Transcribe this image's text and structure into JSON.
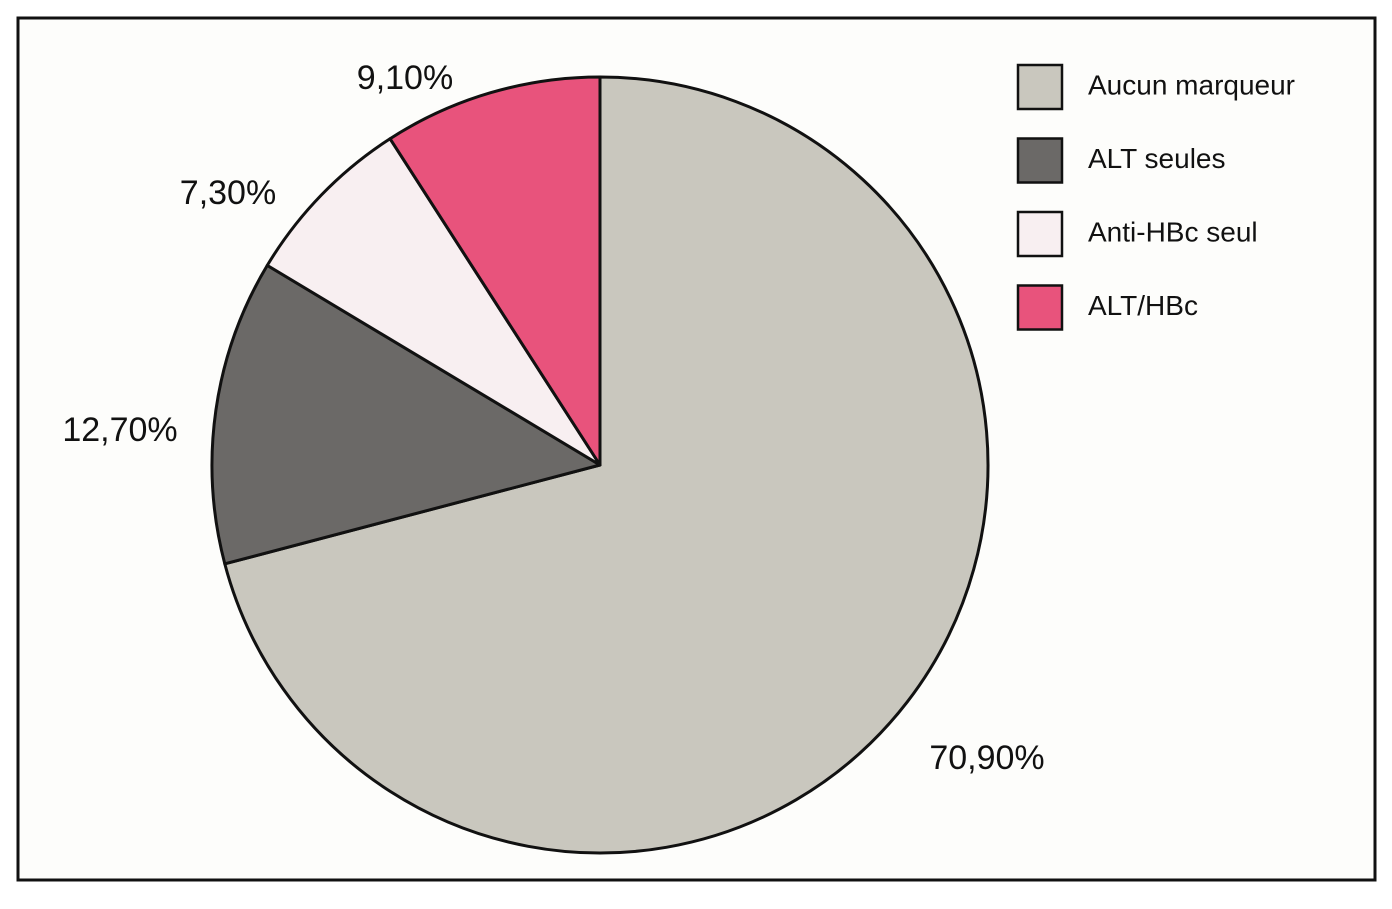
{
  "chart_data": {
    "type": "pie",
    "categories": [
      "Aucun marqueur",
      "ALT seules",
      "Anti-HBc seul",
      "ALT/HBc"
    ],
    "values": [
      70.9,
      12.7,
      7.3,
      9.1
    ],
    "value_labels": [
      "70,90%",
      "12,70%",
      "7,30%",
      "9,10%"
    ],
    "colors": [
      "#c9c7be",
      "#6b6967",
      "#f8eff1",
      "#e8537c"
    ],
    "legend": "top-right"
  }
}
